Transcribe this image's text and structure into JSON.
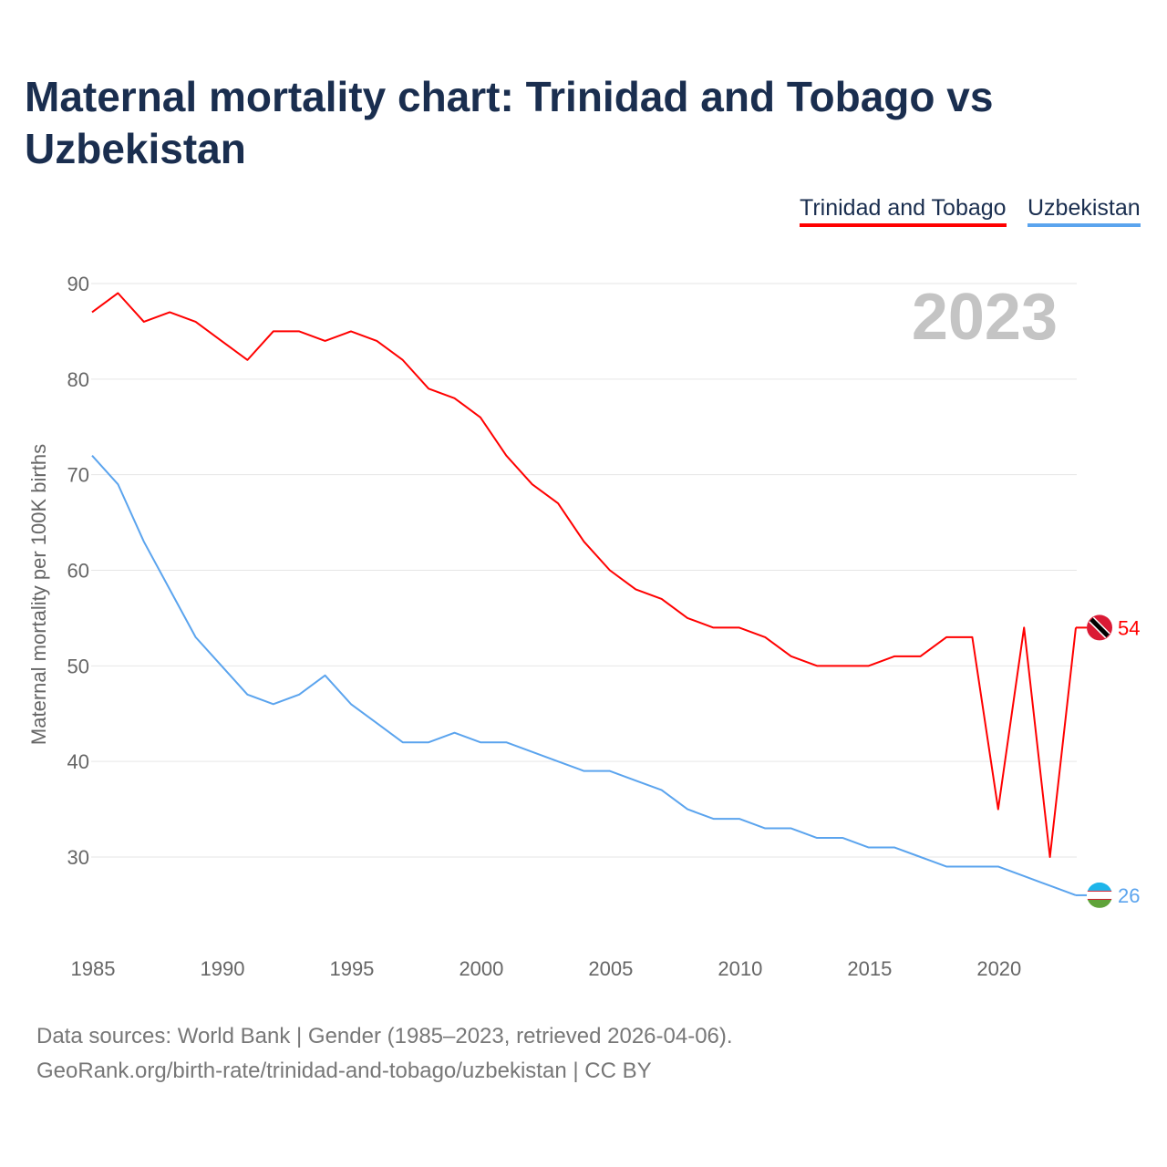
{
  "title": "Maternal mortality chart: Trinidad and Tobago vs Uzbekistan",
  "footer": {
    "line1": "Data sources: World Bank | Gender (1985–2023, retrieved 2026-04-06).",
    "line2": "GeoRank.org/birth-rate/trinidad-and-tobago/uzbekistan | CC BY"
  },
  "chart_data": {
    "type": "line",
    "title": "Maternal mortality chart: Trinidad and Tobago vs Uzbekistan",
    "ylabel": "Maternal mortality per 100K births",
    "xlabel": "",
    "year_label": "2023",
    "ylim": [
      20,
      90
    ],
    "xlim": [
      1985,
      2023
    ],
    "yticks": [
      30,
      40,
      50,
      60,
      70,
      80,
      90
    ],
    "xticks": [
      1985,
      1990,
      1995,
      2000,
      2005,
      2010,
      2015,
      2020
    ],
    "grid": true,
    "legend_position": "top-right",
    "x": [
      1985,
      1986,
      1987,
      1988,
      1989,
      1990,
      1991,
      1992,
      1993,
      1994,
      1995,
      1996,
      1997,
      1998,
      1999,
      2000,
      2001,
      2002,
      2003,
      2004,
      2005,
      2006,
      2007,
      2008,
      2009,
      2010,
      2011,
      2012,
      2013,
      2014,
      2015,
      2016,
      2017,
      2018,
      2019,
      2020,
      2021,
      2022,
      2023
    ],
    "series": [
      {
        "name": "Trinidad and Tobago",
        "color": "#ff0000",
        "end_label": "54",
        "values": [
          87,
          89,
          86,
          87,
          86,
          84,
          82,
          85,
          85,
          84,
          85,
          84,
          82,
          79,
          78,
          76,
          72,
          69,
          67,
          63,
          60,
          58,
          57,
          55,
          54,
          54,
          53,
          51,
          50,
          50,
          50,
          51,
          51,
          53,
          53,
          35,
          54,
          30,
          54
        ]
      },
      {
        "name": "Uzbekistan",
        "color": "#5ba4ee",
        "end_label": "26",
        "values": [
          72,
          69,
          63,
          58,
          53,
          50,
          47,
          46,
          47,
          49,
          46,
          44,
          42,
          42,
          43,
          42,
          42,
          41,
          40,
          39,
          39,
          38,
          37,
          35,
          34,
          34,
          33,
          33,
          32,
          32,
          31,
          31,
          30,
          29,
          29,
          29,
          28,
          27,
          26
        ]
      }
    ]
  }
}
